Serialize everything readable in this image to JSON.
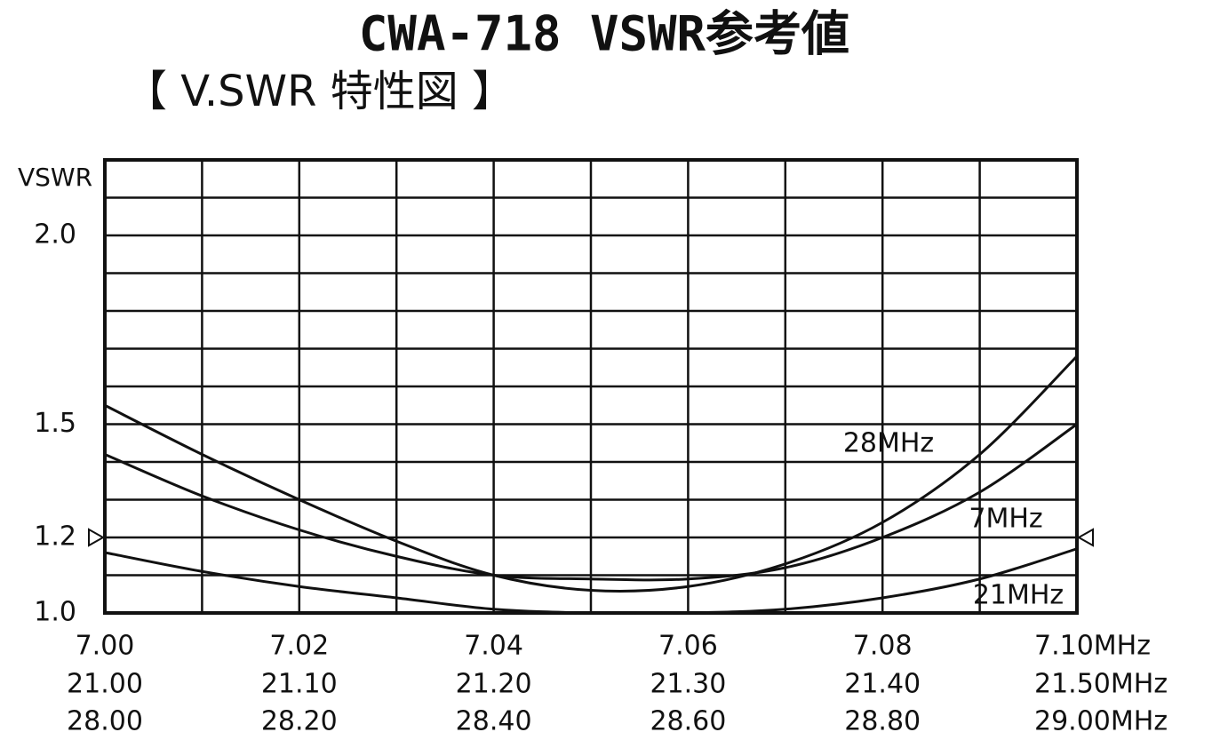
{
  "chart_data": {
    "type": "line",
    "title": "CWA-718 VSWR参考値",
    "subtitle": "【 V.SWR 特性図 】",
    "y_label": "VSWR",
    "ylim": [
      1.0,
      2.2
    ],
    "yticks": [
      {
        "value": 1.0,
        "label": "1.0"
      },
      {
        "value": 1.2,
        "label": "1.2"
      },
      {
        "value": 1.5,
        "label": "1.5"
      },
      {
        "value": 2.0,
        "label": "2.0"
      }
    ],
    "ygrid": [
      1.1,
      1.2,
      1.3,
      1.4,
      1.5,
      1.6,
      1.7,
      1.8,
      1.9,
      2.0,
      2.1
    ],
    "marker_level": 1.2,
    "xlim": [
      7.0,
      7.1
    ],
    "xgrid": [
      7.01,
      7.02,
      7.03,
      7.04,
      7.05,
      7.06,
      7.07,
      7.08,
      7.09
    ],
    "xticks": [
      {
        "value": 7.0,
        "label": "7.00"
      },
      {
        "value": 7.02,
        "label": "7.02"
      },
      {
        "value": 7.04,
        "label": "7.04"
      },
      {
        "value": 7.06,
        "label": "7.06"
      },
      {
        "value": 7.08,
        "label": "7.08"
      },
      {
        "value": 7.1,
        "label": "7.10MHz"
      }
    ],
    "x2lim": [
      21.0,
      21.5
    ],
    "x2ticks": [
      {
        "value": 21.0,
        "label": "21.00"
      },
      {
        "value": 21.1,
        "label": "21.10"
      },
      {
        "value": 21.2,
        "label": "21.20"
      },
      {
        "value": 21.3,
        "label": "21.30"
      },
      {
        "value": 21.4,
        "label": "21.40"
      },
      {
        "value": 21.5,
        "label": "21.50MHz"
      }
    ],
    "x3lim": [
      28.0,
      29.0
    ],
    "x3ticks": [
      {
        "value": 28.0,
        "label": "28.00"
      },
      {
        "value": 28.2,
        "label": "28.20"
      },
      {
        "value": 28.4,
        "label": "28.40"
      },
      {
        "value": 28.6,
        "label": "28.60"
      },
      {
        "value": 28.8,
        "label": "28.80"
      },
      {
        "value": 29.0,
        "label": "29.00MHz"
      }
    ],
    "series": [
      {
        "name": "28MHz",
        "color": "#111111",
        "axis": "x3",
        "x": [
          28.0,
          28.1,
          28.2,
          28.3,
          28.4,
          28.5,
          28.6,
          28.7,
          28.8,
          28.9,
          29.0
        ],
        "values": [
          1.55,
          1.42,
          1.3,
          1.19,
          1.1,
          1.06,
          1.07,
          1.13,
          1.24,
          1.42,
          1.68
        ]
      },
      {
        "name": "7MHz",
        "color": "#111111",
        "axis": "x",
        "x": [
          7.0,
          7.01,
          7.02,
          7.03,
          7.04,
          7.05,
          7.06,
          7.07,
          7.08,
          7.09,
          7.1
        ],
        "values": [
          1.42,
          1.31,
          1.22,
          1.15,
          1.1,
          1.09,
          1.09,
          1.12,
          1.2,
          1.32,
          1.5
        ]
      },
      {
        "name": "21MHz",
        "color": "#111111",
        "axis": "x2",
        "x": [
          21.0,
          21.05,
          21.1,
          21.15,
          21.2,
          21.25,
          21.3,
          21.35,
          21.4,
          21.45,
          21.5
        ],
        "values": [
          1.16,
          1.11,
          1.07,
          1.04,
          1.01,
          1.0,
          1.0,
          1.01,
          1.04,
          1.09,
          1.17
        ]
      }
    ]
  }
}
